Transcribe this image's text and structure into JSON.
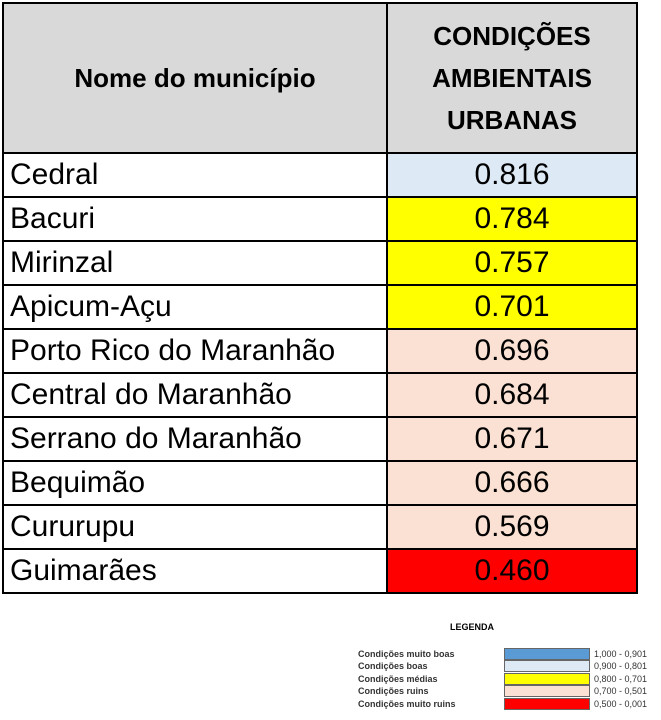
{
  "colors": {
    "header_bg": "#d9d9d9",
    "muito_boas": "#5b9bd5",
    "boas": "#dde9f5",
    "medias": "#ffff00",
    "ruins": "#fbe1d4",
    "muito_ruins": "#ff0000"
  },
  "table": {
    "header_name": "Nome do município",
    "header_cond_line1": "CONDIÇÕES",
    "header_cond_line2": "AMBIENTAIS",
    "header_cond_line3": "URBANAS",
    "rows": [
      {
        "name": "Cedral",
        "value": "0.816",
        "color": "#dde9f5"
      },
      {
        "name": "Bacuri",
        "value": "0.784",
        "color": "#ffff00"
      },
      {
        "name": "Mirinzal",
        "value": "0.757",
        "color": "#ffff00"
      },
      {
        "name": "Apicum-Açu",
        "value": "0.701",
        "color": "#ffff00"
      },
      {
        "name": "Porto Rico do Maranhão",
        "value": "0.696",
        "color": "#fbe1d4"
      },
      {
        "name": "Central do Maranhão",
        "value": "0.684",
        "color": "#fbe1d4"
      },
      {
        "name": "Serrano do Maranhão",
        "value": "0.671",
        "color": "#fbe1d4"
      },
      {
        "name": "Bequimão",
        "value": "0.666",
        "color": "#fbe1d4"
      },
      {
        "name": "Cururupu",
        "value": "0.569",
        "color": "#fbe1d4"
      },
      {
        "name": "Guimarães",
        "value": "0.460",
        "color": "#ff0000"
      }
    ]
  },
  "legend": {
    "title": "LEGENDA",
    "items": [
      {
        "label": "Condições muito boas",
        "range": "1,000 - 0,901",
        "color": "#5b9bd5"
      },
      {
        "label": "Condições boas",
        "range": "0,900 - 0,801",
        "color": "#dde9f5"
      },
      {
        "label": "Condições médias",
        "range": "0,800 - 0,701",
        "color": "#ffff00"
      },
      {
        "label": "Condições ruins",
        "range": "0,700 - 0,501",
        "color": "#fbe1d4"
      },
      {
        "label": "Condições muito ruins",
        "range": "0,500 - 0,001",
        "color": "#ff0000"
      }
    ]
  }
}
